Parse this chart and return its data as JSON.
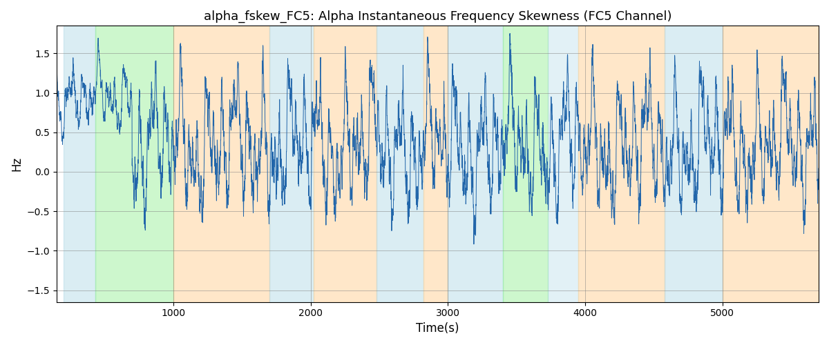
{
  "title": "alpha_fskew_FC5: Alpha Instantaneous Frequency Skewness (FC5 Channel)",
  "xlabel": "Time(s)",
  "ylabel": "Hz",
  "ylim": [
    -1.65,
    1.85
  ],
  "xlim": [
    150,
    5700
  ],
  "line_color": "#2266aa",
  "line_width": 0.7,
  "grid": true,
  "background_regions": [
    {
      "xstart": 200,
      "xend": 430,
      "color": "#add8e6",
      "alpha": 0.45
    },
    {
      "xstart": 430,
      "xend": 1000,
      "color": "#90ee90",
      "alpha": 0.45
    },
    {
      "xstart": 1000,
      "xend": 1700,
      "color": "#ffd59e",
      "alpha": 0.55
    },
    {
      "xstart": 1700,
      "xend": 2020,
      "color": "#add8e6",
      "alpha": 0.45
    },
    {
      "xstart": 2020,
      "xend": 2480,
      "color": "#ffd59e",
      "alpha": 0.55
    },
    {
      "xstart": 2480,
      "xend": 2820,
      "color": "#add8e6",
      "alpha": 0.45
    },
    {
      "xstart": 2820,
      "xend": 3000,
      "color": "#ffd59e",
      "alpha": 0.55
    },
    {
      "xstart": 3000,
      "xend": 3400,
      "color": "#add8e6",
      "alpha": 0.45
    },
    {
      "xstart": 3400,
      "xend": 3730,
      "color": "#90ee90",
      "alpha": 0.45
    },
    {
      "xstart": 3730,
      "xend": 3950,
      "color": "#add8e6",
      "alpha": 0.35
    },
    {
      "xstart": 3950,
      "xend": 4580,
      "color": "#ffd59e",
      "alpha": 0.55
    },
    {
      "xstart": 4580,
      "xend": 5000,
      "color": "#add8e6",
      "alpha": 0.45
    },
    {
      "xstart": 5000,
      "xend": 5700,
      "color": "#ffd59e",
      "alpha": 0.55
    }
  ],
  "xticks": [
    1000,
    2000,
    3000,
    4000,
    5000
  ],
  "yticks": [
    -1.5,
    -1.0,
    -0.5,
    0.0,
    0.5,
    1.0,
    1.5
  ],
  "seed": 42,
  "n_points": 5500
}
